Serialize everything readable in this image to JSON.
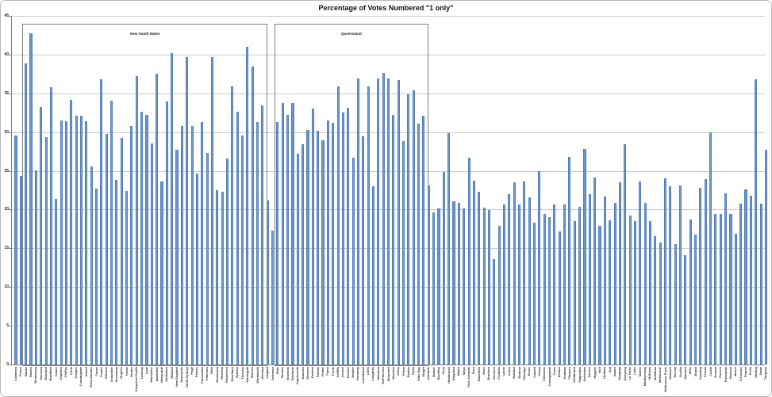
{
  "chart_data": {
    "type": "bar",
    "title": "Percentage of Votes Numbered \"1 only\"",
    "xlabel": "",
    "ylabel": "",
    "ylim": [
      0,
      45
    ],
    "yticks": [
      0,
      5,
      10,
      15,
      20,
      25,
      30,
      35,
      40,
      45
    ],
    "grid": true,
    "legend": false,
    "colors": {
      "bar": "#4f81bd",
      "gridline": "#c9c9c9",
      "axis": "#808080",
      "annotation_border": "#7f7f7f",
      "title_text": "#111111"
    },
    "annotations": [
      {
        "label": "New South Wales",
        "from_index": 2,
        "to_index": 49
      },
      {
        "label": "Queensland",
        "from_index": 52,
        "to_index": 81
      }
    ],
    "categories": [
      "Canberra",
      "Fraser",
      "Banks",
      "Barton",
      "Bennelong",
      "Berowra",
      "Blaxland",
      "Bradfield",
      "Calare",
      "Charlton",
      "Chifley",
      "Cook",
      "Cowper",
      "Cunningham",
      "Dobell",
      "Eden-Monaro",
      "Farrer",
      "Fowler",
      "Gilmore",
      "Grayndler",
      "Greenway",
      "Hughes",
      "Hume",
      "Hunter",
      "Kingsford Smith",
      "Lindsay",
      "Lyne",
      "Macarthur",
      "Mackellar",
      "Macquarie",
      "McMahon",
      "Mitchell",
      "New England",
      "Newcastle",
      "North Sydney",
      "Page",
      "Parkes",
      "Parramatta",
      "Paterson",
      "Reid",
      "Richmond",
      "Riverina",
      "Robertson",
      "Shortland",
      "Sydney",
      "Throsby",
      "Warringah",
      "Watson",
      "Wentworth",
      "Werriwa",
      "Lingiari",
      "Solomon",
      "Blair",
      "Bonner",
      "Bowman",
      "Brisbane",
      "Capricornia",
      "Dawson",
      "Dickson",
      "Fadden",
      "Fairfax",
      "Fisher",
      "Flynn",
      "Forde",
      "Griffith",
      "Groom",
      "Herbert",
      "Hinkler",
      "Kennedy",
      "Leichhardt",
      "Lilley",
      "Longman",
      "Maranoa",
      "McPherson",
      "Moncrieff",
      "Moreton",
      "Oxley",
      "Petrie",
      "Rankin",
      "Ryan",
      "Wide Bay",
      "Wright",
      "Adelaide",
      "Barker",
      "Boothby",
      "Grey",
      "Hindmarsh",
      "Kingston",
      "Makin",
      "Mayo",
      "Port Adelaide",
      "Sturt",
      "Wakefield",
      "Bass",
      "Braddon",
      "Denison",
      "Franklin",
      "Lyons",
      "Aston",
      "Ballarat",
      "Batman",
      "Bendigo",
      "Bruce",
      "Calwell",
      "Casey",
      "Chisholm",
      "Corangamite",
      "Corio",
      "Deakin",
      "Dunkley",
      "Flinders",
      "Gellibrand",
      "Gippsland",
      "Goldstein",
      "Gorton",
      "Higgins",
      "Holt",
      "Hotham",
      "Indi",
      "Isaacs",
      "Jagajaga",
      "Kooyong",
      "La Trobe",
      "Lalor",
      "Mallee",
      "Maribyrnong",
      "McEwen",
      "McMillan",
      "Melbourne",
      "Melbourne Ports",
      "Menzies",
      "Murray",
      "Scullin",
      "Wannon",
      "Wills",
      "Brand",
      "Canning",
      "Cowan",
      "Curtin",
      "Durack",
      "Forrest",
      "Fremantle",
      "Hasluck",
      "Moore",
      "O'Connor",
      "Pearce",
      "Perth",
      "Stirling",
      "Swan",
      "Tangney"
    ],
    "values": [
      29.6,
      24.3,
      38.9,
      42.8,
      25.1,
      33.2,
      29.4,
      35.8,
      21.4,
      31.5,
      31.4,
      34.2,
      32.1,
      32.1,
      31.4,
      25.6,
      22.7,
      36.8,
      29.8,
      34.1,
      23.8,
      29.2,
      22.4,
      30.8,
      37.2,
      32.6,
      32.2,
      28.5,
      37.5,
      23.6,
      34.0,
      40.2,
      27.7,
      30.8,
      39.7,
      30.8,
      24.6,
      31.3,
      27.3,
      39.7,
      22.5,
      22.3,
      26.6,
      35.9,
      32.6,
      29.6,
      41.0,
      38.5,
      31.3,
      33.4,
      21.2,
      17.3,
      31.3,
      33.7,
      32.2,
      33.7,
      27.2,
      28.4,
      30.3,
      33.0,
      30.2,
      28.9,
      31.5,
      31.2,
      35.9,
      32.5,
      33.1,
      26.7,
      36.9,
      29.5,
      35.9,
      23.0,
      36.9,
      37.6,
      36.9,
      32.2,
      36.7,
      28.8,
      34.9,
      35.4,
      31.1,
      32.1,
      23.1,
      19.6,
      20.1,
      24.9,
      29.9,
      21.1,
      20.9,
      20.1,
      26.7,
      23.7,
      22.3,
      20.2,
      19.9,
      13.6,
      17.9,
      20.7,
      22.0,
      23.5,
      20.7,
      23.6,
      21.6,
      18.3,
      25.0,
      19.4,
      19.0,
      20.7,
      17.2,
      20.7,
      26.8,
      18.5,
      20.4,
      27.8,
      22.0,
      24.1,
      17.9,
      21.7,
      18.6,
      20.9,
      23.5,
      28.4,
      19.2,
      18.5,
      23.6,
      20.9,
      18.5,
      16.6,
      15.8,
      24.0,
      23.0,
      15.5,
      23.1,
      14.1,
      18.7,
      16.8,
      22.8,
      23.9,
      30.0,
      19.4,
      19.4,
      22.1,
      19.4,
      16.9,
      20.8,
      22.6,
      21.8,
      36.8,
      20.8,
      27.7
    ]
  }
}
